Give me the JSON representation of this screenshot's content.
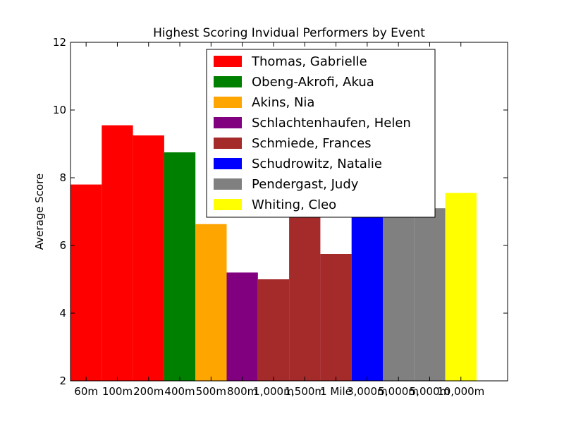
{
  "chart_data": {
    "type": "bar",
    "title": "Highest Scoring Invidual Performers by Event",
    "xlabel": "",
    "ylabel": "Average Score",
    "ylim": [
      2,
      12
    ],
    "yticks": [
      "2",
      "4",
      "6",
      "8",
      "10",
      "12"
    ],
    "categories": [
      "60m",
      "100m",
      "200m",
      "400m",
      "500m",
      "800m",
      "1,000m",
      "1,500m",
      "1 Mile",
      "3,000m",
      "5,000m",
      "5,000m",
      "10,000m"
    ],
    "values": [
      7.8,
      9.55,
      9.25,
      8.75,
      6.63,
      5.2,
      5.0,
      7.5,
      5.75,
      7.05,
      7.1,
      7.1,
      7.55
    ],
    "bar_colors": [
      "#ff0000",
      "#ff0000",
      "#ff0000",
      "#008000",
      "#ffa500",
      "#800080",
      "#a52a2a",
      "#a52a2a",
      "#a52a2a",
      "#0000ff",
      "#808080",
      "#808080",
      "#ffff00"
    ],
    "legend_position": "top-center",
    "legend": [
      {
        "label": "Thomas, Gabrielle",
        "color": "#ff0000"
      },
      {
        "label": "Obeng-Akrofi, Akua",
        "color": "#008000"
      },
      {
        "label": "Akins, Nia",
        "color": "#ffa500"
      },
      {
        "label": "Schlachtenhaufen, Helen",
        "color": "#800080"
      },
      {
        "label": "Schmiede, Frances",
        "color": "#a52a2a"
      },
      {
        "label": "Schudrowitz, Natalie",
        "color": "#0000ff"
      },
      {
        "label": "Pendergast, Judy",
        "color": "#808080"
      },
      {
        "label": "Whiting, Cleo",
        "color": "#ffff00"
      }
    ],
    "grid": false
  }
}
